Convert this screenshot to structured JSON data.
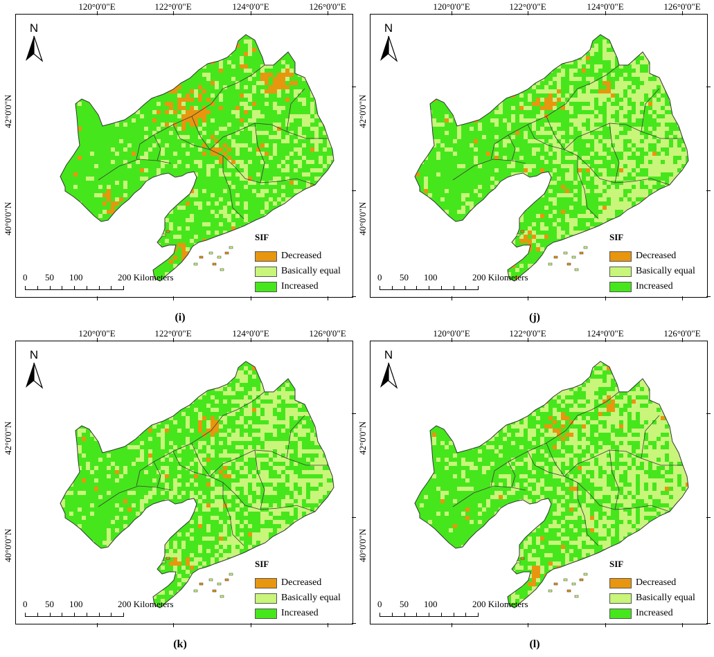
{
  "panels": [
    {
      "caption": "(i)",
      "lon_labels": [
        "120°0'0\"E",
        "122°0'0\"E",
        "124°0'0\"E",
        "126°0'0\"E"
      ],
      "lat_labels": [
        "42°0'0\"N",
        "40°0'0\"N"
      ],
      "north_label": "N",
      "legend_title": "SIF",
      "legend_items": [
        {
          "label": "Decreased",
          "color": "#e8960f"
        },
        {
          "label": "Basically equal",
          "color": "#c8f57a"
        },
        {
          "label": "Increased",
          "color": "#46e61c"
        }
      ],
      "scale_labels": [
        "0",
        "50",
        "100",
        "200 Kilometers"
      ],
      "class_shares": {
        "decreased": 0.18,
        "basically_equal": 0.22,
        "increased": 0.6
      }
    },
    {
      "caption": "(j)",
      "lon_labels": [
        "120°0'0\"E",
        "122°0'0\"E",
        "124°0'0\"E",
        "126°0'0\"E"
      ],
      "lat_labels": [
        "42°0'0\"N",
        "40°0'0\"N"
      ],
      "north_label": "N",
      "legend_title": "SIF",
      "legend_items": [
        {
          "label": "Decreased",
          "color": "#e8960f"
        },
        {
          "label": "Basically equal",
          "color": "#c8f57a"
        },
        {
          "label": "Increased",
          "color": "#46e61c"
        }
      ],
      "scale_labels": [
        "0",
        "50",
        "100",
        "200 Kilometers"
      ],
      "class_shares": {
        "decreased": 0.08,
        "basically_equal": 0.37,
        "increased": 0.55
      }
    },
    {
      "caption": "(k)",
      "lon_labels": [
        "120°0'0\"E",
        "122°0'0\"E",
        "124°0'0\"E",
        "126°0'0\"E"
      ],
      "lat_labels": [
        "42°0'0\"N",
        "40°0'0\"N"
      ],
      "north_label": "N",
      "legend_title": "SIF",
      "legend_items": [
        {
          "label": "Decreased",
          "color": "#e8960f"
        },
        {
          "label": "Basically equal",
          "color": "#c8f57a"
        },
        {
          "label": "Increased",
          "color": "#46e61c"
        }
      ],
      "scale_labels": [
        "0",
        "50",
        "100",
        "200 Kilometers"
      ],
      "class_shares": {
        "decreased": 0.06,
        "basically_equal": 0.36,
        "increased": 0.58
      }
    },
    {
      "caption": "(l)",
      "lon_labels": [
        "120°0'0\"E",
        "122°0'0\"E",
        "124°0'0\"E",
        "126°0'0\"E"
      ],
      "lat_labels": [
        "42°0'0\"N",
        "40°0'0\"N"
      ],
      "north_label": "N",
      "legend_title": "SIF",
      "legend_items": [
        {
          "label": "Decreased",
          "color": "#e8960f"
        },
        {
          "label": "Basically equal",
          "color": "#c8f57a"
        },
        {
          "label": "Increased",
          "color": "#46e61c"
        }
      ],
      "scale_labels": [
        "0",
        "50",
        "100",
        "200 Kilometers"
      ],
      "class_shares": {
        "decreased": 0.08,
        "basically_equal": 0.4,
        "increased": 0.52
      }
    }
  ]
}
